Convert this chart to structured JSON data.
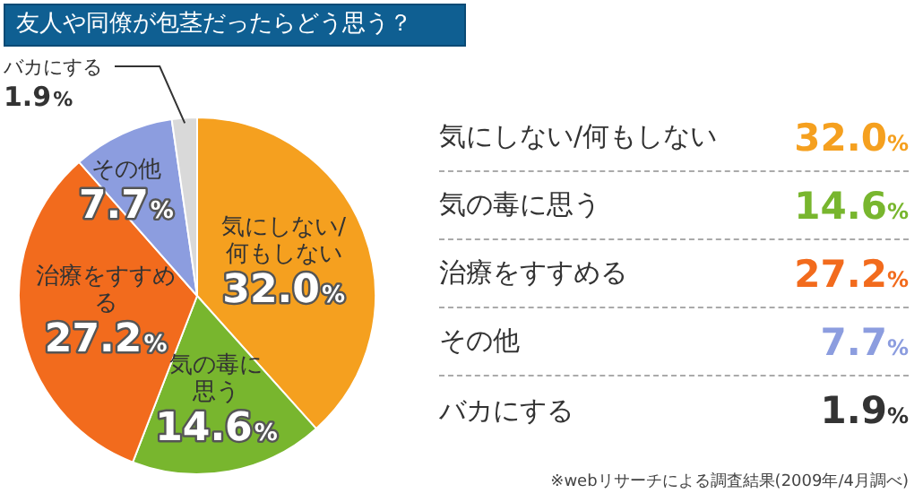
{
  "chart_data": {
    "type": "pie",
    "title": "友人や同僚が包茎だったらどう思う？",
    "categories": [
      "気にしない/何もしない",
      "気の毒に思う",
      "治療をすすめる",
      "その他",
      "バカにする"
    ],
    "values": [
      32.0,
      14.6,
      27.2,
      7.7,
      1.9
    ],
    "value_labels": [
      "32.0%",
      "14.6%",
      "27.2%",
      "7.7%",
      "1.9%"
    ],
    "colors": [
      "#f5a01f",
      "#78b62e",
      "#f26b1d",
      "#8c9ddf",
      "#d9d9d9"
    ],
    "annotations": [
      "※webリサーチによる調査結果(2009年/4月調べ)"
    ]
  }
}
